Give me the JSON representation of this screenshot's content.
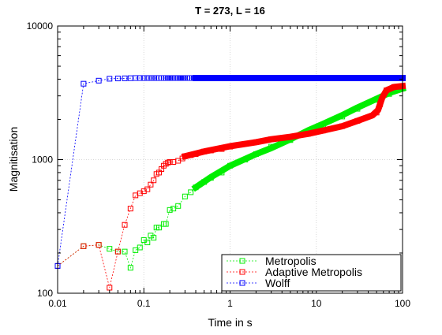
{
  "chart_data": {
    "type": "scatter",
    "title": "T = 273, L = 16",
    "xlabel": "Time in s",
    "ylabel": "Magnitisation",
    "xscale": "log",
    "yscale": "log",
    "xlim": [
      0.01,
      100
    ],
    "ylim": [
      100,
      10000
    ],
    "x_ticks": [
      0.01,
      0.1,
      1,
      10,
      100
    ],
    "x_tick_labels": [
      "0.01",
      "0.1",
      "1",
      "10",
      "100"
    ],
    "y_ticks": [
      100,
      1000,
      10000
    ],
    "y_tick_labels": [
      "100",
      "1000",
      "10000"
    ],
    "grid": true,
    "legend_position": "bottom-right",
    "series": [
      {
        "name": "Metropolis",
        "color": "#00ee00",
        "marker": "square",
        "line": "dotted",
        "points": [
          [
            0.01,
            160
          ],
          [
            0.02,
            225
          ],
          [
            0.03,
            230
          ],
          [
            0.04,
            215
          ],
          [
            0.05,
            205
          ],
          [
            0.06,
            205
          ],
          [
            0.07,
            155
          ],
          [
            0.08,
            210
          ],
          [
            0.09,
            220
          ],
          [
            0.1,
            250
          ],
          [
            0.11,
            240
          ],
          [
            0.12,
            270
          ],
          [
            0.13,
            260
          ],
          [
            0.14,
            310
          ],
          [
            0.15,
            310
          ],
          [
            0.17,
            330
          ],
          [
            0.18,
            330
          ],
          [
            0.2,
            420
          ],
          [
            0.22,
            430
          ],
          [
            0.25,
            450
          ],
          [
            0.3,
            530
          ],
          [
            0.35,
            570
          ],
          [
            0.4,
            620
          ],
          [
            0.5,
            680
          ],
          [
            0.6,
            730
          ],
          [
            0.8,
            800
          ],
          [
            1,
            900
          ],
          [
            1.5,
            1000
          ],
          [
            2,
            1100
          ],
          [
            3,
            1250
          ],
          [
            5,
            1400
          ],
          [
            8,
            1600
          ],
          [
            12,
            1800
          ],
          [
            20,
            2100
          ],
          [
            30,
            2400
          ],
          [
            50,
            2800
          ],
          [
            70,
            3100
          ],
          [
            100,
            3400
          ]
        ],
        "curve": [
          [
            0.4,
            620
          ],
          [
            0.6,
            740
          ],
          [
            1,
            900
          ],
          [
            2,
            1100
          ],
          [
            3,
            1220
          ],
          [
            5,
            1420
          ],
          [
            8,
            1650
          ],
          [
            12,
            1850
          ],
          [
            20,
            2150
          ],
          [
            30,
            2450
          ],
          [
            50,
            2850
          ],
          [
            70,
            3150
          ],
          [
            100,
            3400
          ]
        ]
      },
      {
        "name": "Adaptive Metropolis",
        "color": "#ff0000",
        "marker": "square",
        "line": "dotted",
        "points": [
          [
            0.01,
            160
          ],
          [
            0.02,
            225
          ],
          [
            0.03,
            230
          ],
          [
            0.04,
            110
          ],
          [
            0.05,
            205
          ],
          [
            0.06,
            325
          ],
          [
            0.07,
            430
          ],
          [
            0.08,
            540
          ],
          [
            0.09,
            560
          ],
          [
            0.1,
            580
          ],
          [
            0.11,
            600
          ],
          [
            0.12,
            650
          ],
          [
            0.13,
            700
          ],
          [
            0.14,
            780
          ],
          [
            0.15,
            800
          ],
          [
            0.16,
            850
          ],
          [
            0.17,
            900
          ],
          [
            0.18,
            930
          ],
          [
            0.19,
            950
          ],
          [
            0.2,
            960
          ],
          [
            0.22,
            960
          ],
          [
            0.25,
            980
          ],
          [
            0.28,
            1020
          ],
          [
            0.3,
            1060
          ],
          [
            0.35,
            1080
          ],
          [
            0.4,
            1100
          ],
          [
            0.5,
            1150
          ],
          [
            0.6,
            1170
          ],
          [
            0.8,
            1200
          ],
          [
            1,
            1250
          ],
          [
            2,
            1350
          ],
          [
            3,
            1420
          ],
          [
            5,
            1480
          ],
          [
            8,
            1560
          ],
          [
            12,
            1650
          ],
          [
            20,
            1780
          ],
          [
            30,
            1950
          ],
          [
            50,
            2250
          ],
          [
            55,
            2600
          ],
          [
            65,
            3300
          ],
          [
            80,
            3500
          ],
          [
            100,
            3550
          ]
        ],
        "curve": [
          [
            0.3,
            1060
          ],
          [
            0.5,
            1150
          ],
          [
            1,
            1260
          ],
          [
            2,
            1350
          ],
          [
            3,
            1420
          ],
          [
            5,
            1480
          ],
          [
            8,
            1560
          ],
          [
            12,
            1650
          ],
          [
            20,
            1780
          ],
          [
            30,
            1950
          ],
          [
            45,
            2150
          ],
          [
            52,
            2350
          ],
          [
            58,
            2900
          ],
          [
            65,
            3300
          ],
          [
            80,
            3500
          ],
          [
            100,
            3550
          ]
        ]
      },
      {
        "name": "Wolff",
        "color": "#0000ff",
        "marker": "square",
        "line": "dotted",
        "points": [
          [
            0.01,
            160
          ],
          [
            0.02,
            3700
          ],
          [
            0.03,
            3900
          ],
          [
            0.04,
            4030
          ],
          [
            0.05,
            4050
          ],
          [
            0.06,
            4060
          ],
          [
            0.07,
            4070
          ],
          [
            0.08,
            4080
          ],
          [
            0.09,
            4080
          ],
          [
            0.1,
            4080
          ],
          [
            0.11,
            4080
          ],
          [
            0.12,
            4080
          ],
          [
            0.13,
            4080
          ],
          [
            0.14,
            4080
          ],
          [
            0.15,
            4080
          ],
          [
            0.16,
            4080
          ],
          [
            0.17,
            4080
          ],
          [
            0.18,
            4080
          ],
          [
            0.19,
            4080
          ],
          [
            0.2,
            4080
          ],
          [
            0.21,
            4080
          ],
          [
            0.22,
            4080
          ],
          [
            0.23,
            4080
          ],
          [
            0.24,
            4080
          ],
          [
            0.25,
            4080
          ],
          [
            0.26,
            4080
          ],
          [
            0.27,
            4080
          ],
          [
            0.28,
            4080
          ],
          [
            0.29,
            4080
          ],
          [
            0.3,
            4080
          ],
          [
            0.32,
            4080
          ],
          [
            0.34,
            4080
          ],
          [
            0.36,
            4080
          ],
          [
            0.38,
            4080
          ],
          [
            0.4,
            4080
          ],
          [
            0.45,
            4080
          ],
          [
            0.5,
            4080
          ],
          [
            0.55,
            4080
          ],
          [
            0.6,
            4080
          ],
          [
            0.7,
            4080
          ],
          [
            0.8,
            4080
          ],
          [
            0.9,
            4080
          ],
          [
            1,
            4080
          ],
          [
            100,
            4080
          ]
        ],
        "curve": [
          [
            0.4,
            4080
          ],
          [
            100,
            4080
          ]
        ]
      }
    ]
  }
}
